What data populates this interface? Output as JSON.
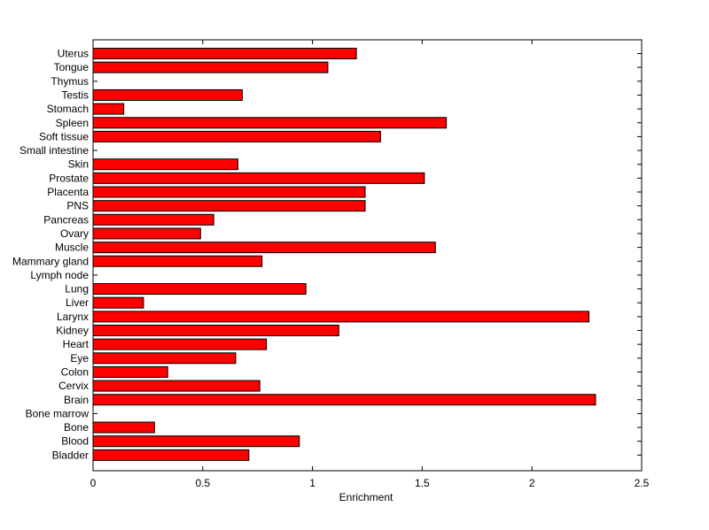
{
  "chart_data": {
    "type": "bar",
    "orientation": "horizontal",
    "title": "",
    "xlabel": "Enrichment",
    "ylabel": "",
    "xlim": [
      0,
      2.5
    ],
    "xticks": [
      0,
      0.5,
      1,
      1.5,
      2,
      2.5
    ],
    "xtick_labels": [
      "0",
      "0.5",
      "1",
      "1.5",
      "2",
      "2.5"
    ],
    "grid": false,
    "bar_color": "#ff0000",
    "categories": [
      "Uterus",
      "Tongue",
      "Thymus",
      "Testis",
      "Stomach",
      "Spleen",
      "Soft tissue",
      "Small intestine",
      "Skin",
      "Prostate",
      "Placenta",
      "PNS",
      "Pancreas",
      "Ovary",
      "Muscle",
      "Mammary gland",
      "Lymph node",
      "Lung",
      "Liver",
      "Larynx",
      "Kidney",
      "Heart",
      "Eye",
      "Colon",
      "Cervix",
      "Brain",
      "Bone marrow",
      "Bone",
      "Blood",
      "Bladder"
    ],
    "values": [
      1.2,
      1.07,
      0,
      0.68,
      0.14,
      1.61,
      1.31,
      0,
      0.66,
      1.51,
      1.24,
      1.24,
      0.55,
      0.49,
      1.56,
      0.77,
      0,
      0.97,
      0.23,
      2.26,
      1.12,
      0.79,
      0.65,
      0.34,
      0.76,
      2.29,
      0,
      0.28,
      0.94,
      0.71
    ]
  }
}
